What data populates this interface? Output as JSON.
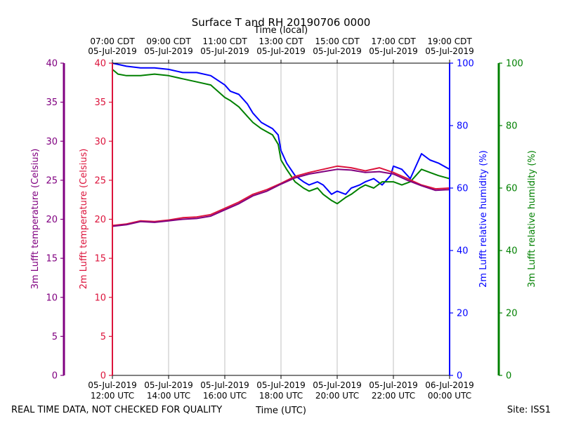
{
  "chart_data": {
    "type": "line",
    "title": "Surface T and RH 20190706 0000",
    "top_axis_label": "Time (local)",
    "xlabel": "Time (UTC)",
    "footer_left": "REAL TIME DATA, NOT CHECKED FOR QUALITY",
    "footer_right": "Site: ISS1",
    "x_range_hours": [
      12,
      24
    ],
    "bottom_ticks": [
      {
        "hour": 12,
        "date": "05-Jul-2019",
        "time": "12:00 UTC"
      },
      {
        "hour": 14,
        "date": "05-Jul-2019",
        "time": "14:00 UTC"
      },
      {
        "hour": 16,
        "date": "05-Jul-2019",
        "time": "16:00 UTC"
      },
      {
        "hour": 18,
        "date": "05-Jul-2019",
        "time": "18:00 UTC"
      },
      {
        "hour": 20,
        "date": "05-Jul-2019",
        "time": "20:00 UTC"
      },
      {
        "hour": 22,
        "date": "05-Jul-2019",
        "time": "22:00 UTC"
      },
      {
        "hour": 24,
        "date": "06-Jul-2019",
        "time": "00:00 UTC"
      }
    ],
    "top_ticks": [
      {
        "hour": 12,
        "time": "07:00 CDT",
        "date": "05-Jul-2019"
      },
      {
        "hour": 14,
        "time": "09:00 CDT",
        "date": "05-Jul-2019"
      },
      {
        "hour": 16,
        "time": "11:00 CDT",
        "date": "05-Jul-2019"
      },
      {
        "hour": 18,
        "time": "13:00 CDT",
        "date": "05-Jul-2019"
      },
      {
        "hour": 20,
        "time": "15:00 CDT",
        "date": "05-Jul-2019"
      },
      {
        "hour": 22,
        "time": "17:00 CDT",
        "date": "05-Jul-2019"
      },
      {
        "hour": 24,
        "time": "19:00 CDT",
        "date": "05-Jul-2019"
      }
    ],
    "axes": [
      {
        "id": "t3",
        "label": "3m Lufft temperature (Celsius)",
        "color": "#800080",
        "range": [
          0,
          40
        ],
        "ticks": [
          0,
          5,
          10,
          15,
          20,
          25,
          30,
          35,
          40
        ]
      },
      {
        "id": "t2",
        "label": "2m Lufft temperature (Celsius)",
        "color": "#dc143c",
        "range": [
          0,
          40
        ],
        "ticks": [
          0,
          5,
          10,
          15,
          20,
          25,
          30,
          35,
          40
        ]
      },
      {
        "id": "rh2",
        "label": "2m Lufft relative humidity (%)",
        "color": "#0000ff",
        "range": [
          0,
          100
        ],
        "ticks": [
          0,
          20,
          40,
          60,
          80,
          100
        ]
      },
      {
        "id": "rh3",
        "label": "3m Lufft relative humidity (%)",
        "color": "#008000",
        "range": [
          0,
          100
        ],
        "ticks": [
          0,
          20,
          40,
          60,
          80,
          100
        ]
      }
    ],
    "series": [
      {
        "name": "2m relative humidity",
        "axis": "rh2",
        "color": "#0000ff",
        "x": [
          12,
          12.5,
          13,
          13.5,
          14,
          14.5,
          15,
          15.5,
          16,
          16.2,
          16.5,
          16.8,
          17,
          17.3,
          17.5,
          17.7,
          17.9,
          18,
          18.2,
          18.5,
          18.8,
          19,
          19.3,
          19.5,
          19.8,
          20,
          20.3,
          20.5,
          20.8,
          21,
          21.3,
          21.6,
          21.9,
          22,
          22.3,
          22.6,
          23,
          23.3,
          23.6,
          24
        ],
        "values": [
          100,
          99,
          98.5,
          98.5,
          98,
          97,
          97,
          96,
          93,
          91,
          90,
          87,
          84,
          81,
          80,
          79,
          77,
          72,
          68,
          64,
          62,
          61,
          62,
          61,
          58,
          59,
          58,
          60,
          61,
          62,
          63,
          61,
          64,
          67,
          66,
          63,
          71,
          69,
          68,
          66
        ]
      },
      {
        "name": "3m relative humidity",
        "axis": "rh3",
        "color": "#008000",
        "x": [
          12,
          12.2,
          12.5,
          13,
          13.5,
          14,
          14.5,
          15,
          15.5,
          16,
          16.2,
          16.5,
          16.8,
          17,
          17.3,
          17.5,
          17.7,
          17.9,
          18,
          18.2,
          18.5,
          18.8,
          19,
          19.3,
          19.5,
          19.8,
          20,
          20.3,
          20.5,
          20.8,
          21,
          21.3,
          21.6,
          21.9,
          22,
          22.3,
          22.6,
          23,
          23.3,
          23.6,
          24
        ],
        "values": [
          98,
          96.5,
          96,
          96,
          96.5,
          96,
          95,
          94,
          93,
          89,
          88,
          86,
          83,
          81,
          79,
          78,
          77,
          74,
          69,
          66,
          62,
          60,
          59,
          60,
          58,
          56,
          55,
          57,
          58,
          60,
          61,
          60,
          62,
          62,
          62,
          61,
          62,
          66,
          65,
          64,
          63
        ]
      },
      {
        "name": "2m temperature",
        "axis": "t2",
        "color": "#dc143c",
        "x": [
          12,
          12.5,
          13,
          13.5,
          14,
          14.5,
          15,
          15.5,
          16,
          16.5,
          17,
          17.5,
          18,
          18.5,
          19,
          19.5,
          20,
          20.5,
          21,
          21.5,
          22,
          22.5,
          23,
          23.5,
          24
        ],
        "values": [
          19.2,
          19.4,
          19.8,
          19.7,
          19.9,
          20.2,
          20.3,
          20.6,
          21.4,
          22.2,
          23.2,
          23.8,
          24.6,
          25.5,
          26.0,
          26.4,
          26.8,
          26.6,
          26.2,
          26.6,
          26.0,
          25.2,
          24.4,
          23.9,
          24.0
        ]
      },
      {
        "name": "3m temperature",
        "axis": "t3",
        "color": "#800080",
        "x": [
          12,
          12.5,
          13,
          13.5,
          14,
          14.5,
          15,
          15.5,
          16,
          16.5,
          17,
          17.5,
          18,
          18.5,
          19,
          19.5,
          20,
          20.5,
          21,
          21.5,
          22,
          22.5,
          23,
          23.5,
          24
        ],
        "values": [
          19.1,
          19.3,
          19.7,
          19.6,
          19.8,
          20.0,
          20.1,
          20.4,
          21.2,
          22.0,
          23.0,
          23.6,
          24.5,
          25.3,
          25.8,
          26.1,
          26.4,
          26.3,
          26.0,
          26.1,
          25.8,
          25.0,
          24.3,
          23.7,
          23.8
        ]
      }
    ]
  }
}
